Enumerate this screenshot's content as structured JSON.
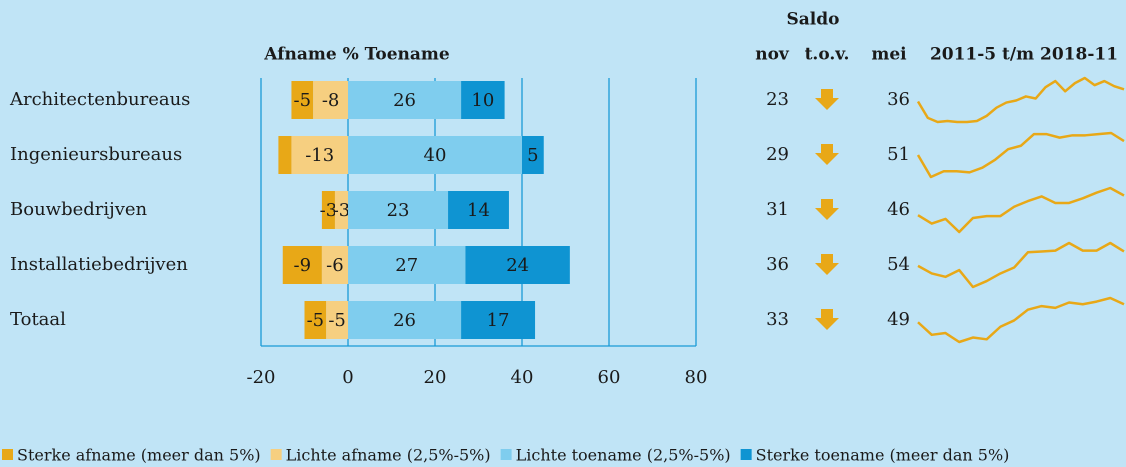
{
  "chart_data": {
    "type": "bar",
    "orientation": "horizontal",
    "stacked": true,
    "axis_label": "Afname % Toename",
    "categories": [
      "Architectenbureaus",
      "Ingenieursbureaus",
      "Bouwbedrijven",
      "Installatiebedrijven",
      "Totaal"
    ],
    "label_colors": [
      "#1a1a1a",
      "#1a1a1a",
      "#1a1a1a",
      "#1a1a1a",
      "#1a9ad6"
    ],
    "series": [
      {
        "name": "Sterke afname (meer dan 5%)",
        "color": "#e8a817",
        "values": [
          -5,
          -3,
          -3,
          -9,
          -5
        ],
        "value_labels": [
          "-5",
          null,
          "-3",
          "-9",
          "-5"
        ]
      },
      {
        "name": "Lichte afname (2,5%-5%)",
        "color": "#f6cf80",
        "values": [
          -8,
          -13,
          -3,
          -6,
          -5
        ]
      },
      {
        "name": "Lichte toename (2,5%-5%)",
        "color": "#7fcdee",
        "values": [
          26,
          40,
          23,
          27,
          26
        ]
      },
      {
        "name": "Sterke toename (meer dan 5%)",
        "color": "#0f94d2",
        "values": [
          10,
          5,
          14,
          24,
          17
        ]
      }
    ],
    "xlim": [
      -20,
      80
    ],
    "xticks": [
      -20,
      0,
      20,
      40,
      60,
      80
    ],
    "grid": true,
    "grid_color": "#1a9ad6",
    "saldo": {
      "title": "Saldo",
      "headers": [
        "nov",
        "t.o.v.",
        "mei"
      ],
      "nov": [
        23,
        29,
        31,
        36,
        33
      ],
      "mei": [
        36,
        51,
        46,
        54,
        49
      ],
      "arrow_color": "#e8a817"
    },
    "sparkline": {
      "title": "2011-5 t/m 2018-11",
      "color": "#e8a817",
      "series": [
        [
          23,
          7,
          3,
          4,
          3,
          3,
          4,
          9,
          17,
          22,
          24,
          28,
          26,
          37,
          43,
          33,
          41,
          46,
          39,
          43,
          38,
          35
        ],
        [
          22,
          3,
          8,
          8,
          7,
          11,
          18,
          27,
          30,
          40,
          40,
          37,
          39,
          39,
          40,
          41,
          34
        ],
        [
          22,
          13,
          18,
          4,
          19,
          21,
          21,
          31,
          37,
          42,
          35,
          35,
          40,
          46,
          51,
          43
        ],
        [
          27,
          18,
          14,
          22,
          2,
          9,
          18,
          25,
          43,
          44,
          45,
          54,
          45,
          45,
          54,
          44
        ],
        [
          25,
          11,
          13,
          3,
          8,
          6,
          20,
          27,
          39,
          43,
          41,
          47,
          45,
          48,
          52,
          45
        ]
      ]
    },
    "background": "#c0e4f6"
  }
}
